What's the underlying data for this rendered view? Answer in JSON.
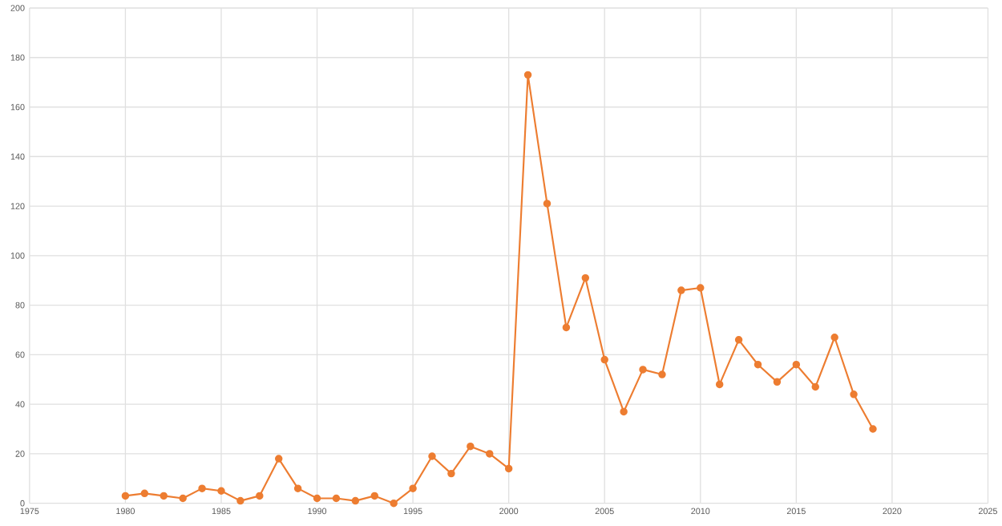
{
  "chart_data": {
    "type": "line",
    "x": [
      1980,
      1981,
      1982,
      1983,
      1984,
      1985,
      1986,
      1987,
      1988,
      1989,
      1990,
      1991,
      1992,
      1993,
      1994,
      1995,
      1996,
      1997,
      1998,
      1999,
      2000,
      2001,
      2002,
      2003,
      2004,
      2005,
      2006,
      2007,
      2008,
      2009,
      2010,
      2011,
      2012,
      2013,
      2014,
      2015,
      2016,
      2017,
      2018,
      2019
    ],
    "series": [
      {
        "color": "#ed7d31",
        "values": [
          3,
          4,
          3,
          2,
          6,
          5,
          1,
          3,
          18,
          6,
          2,
          2,
          1,
          3,
          0,
          6,
          19,
          12,
          23,
          20,
          14,
          173,
          121,
          71,
          91,
          58,
          37,
          54,
          52,
          86,
          87,
          48,
          66,
          56,
          49,
          56,
          47,
          67,
          44,
          30
        ]
      }
    ],
    "xlim": [
      1975,
      2025
    ],
    "xticks": [
      1975,
      1980,
      1985,
      1990,
      1995,
      2000,
      2005,
      2010,
      2015,
      2020,
      2025
    ],
    "ylim": [
      0,
      200
    ],
    "yticks": [
      0,
      20,
      40,
      60,
      80,
      100,
      120,
      140,
      160,
      180,
      200
    ],
    "grid": true,
    "marker": "circle",
    "line_style": "solid"
  }
}
